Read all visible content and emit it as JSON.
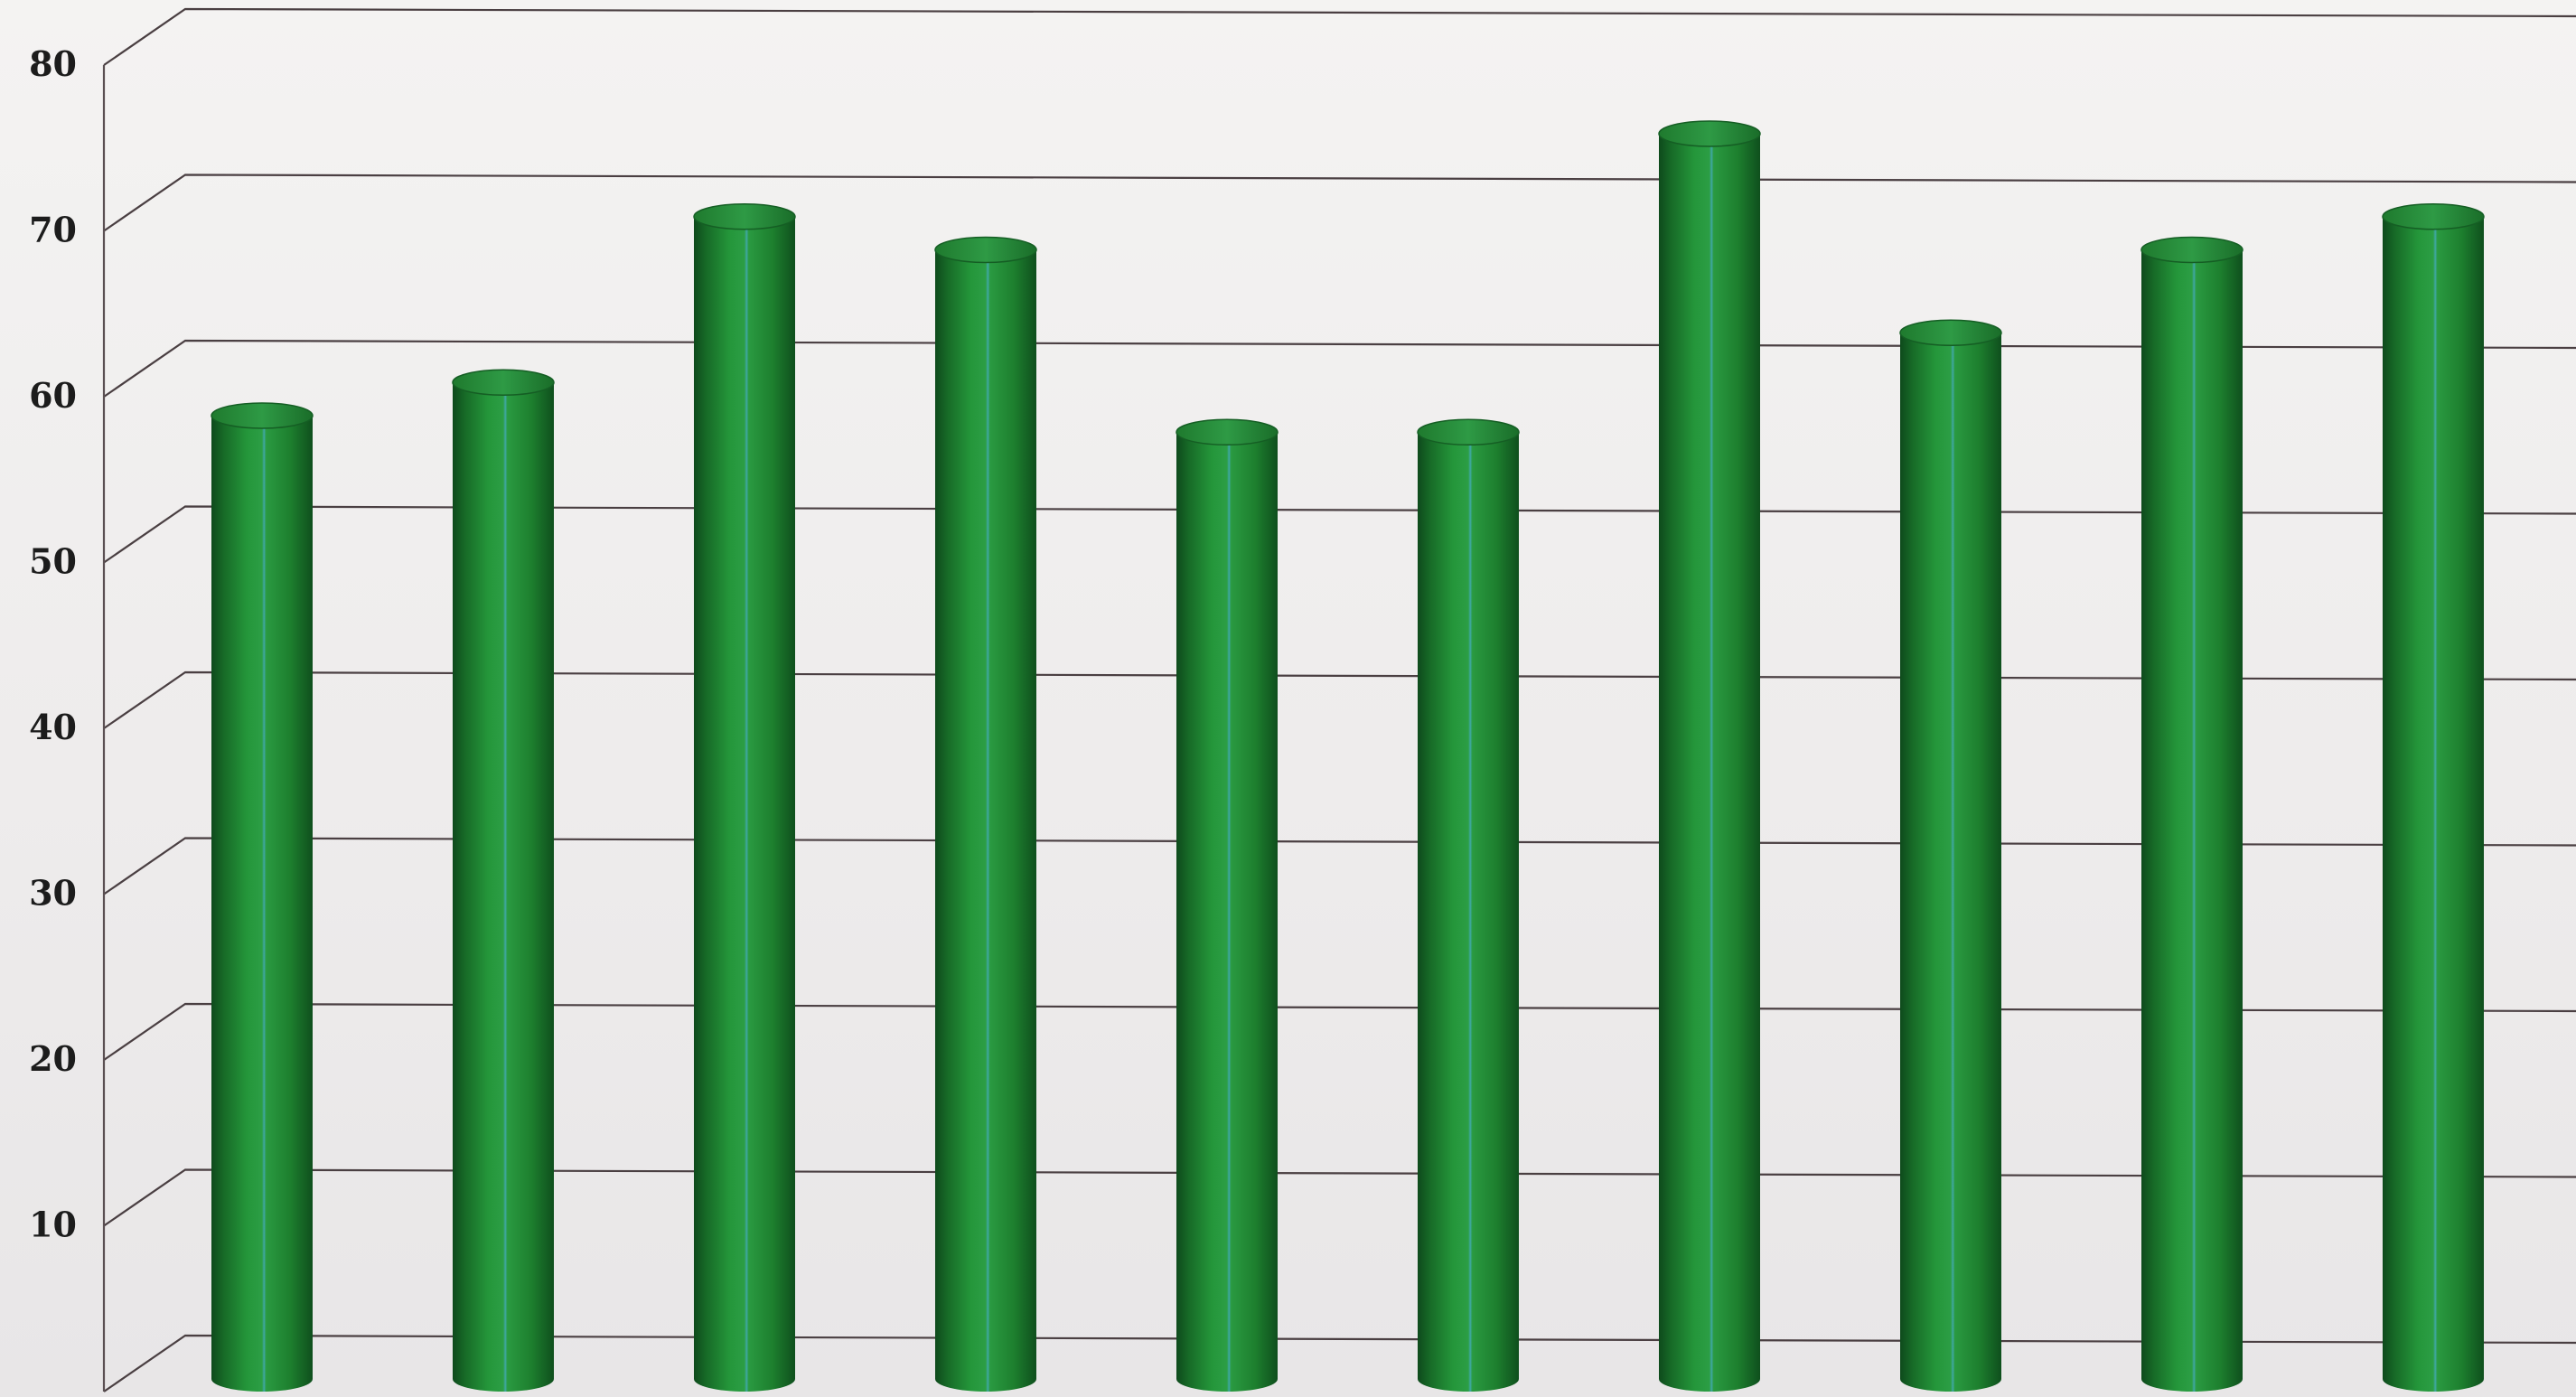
{
  "chart_data": {
    "type": "bar",
    "style": "3d-cylinder",
    "title": "",
    "xlabel": "",
    "ylabel": "",
    "ylim": [
      0,
      80
    ],
    "yticks": [
      10,
      20,
      30,
      40,
      50,
      60,
      70,
      80
    ],
    "ytick_labels": [
      "10",
      "20",
      "30",
      "40",
      "50",
      "60",
      "70",
      "80"
    ],
    "grid": true,
    "legend": "none",
    "bar_color": "#1f8a2f",
    "values": [
      57,
      59,
      69,
      67,
      56,
      56,
      74,
      62,
      67,
      69
    ]
  }
}
